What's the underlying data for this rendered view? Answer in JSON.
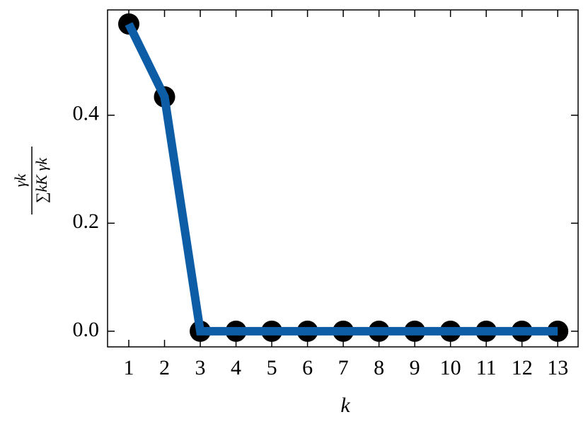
{
  "chart_data": {
    "type": "line",
    "xlabel": "k",
    "ylabel": {
      "numerator": "γk",
      "denominator": "∑kK γk"
    },
    "x": [
      1,
      2,
      3,
      4,
      5,
      6,
      7,
      8,
      9,
      10,
      11,
      12,
      13
    ],
    "values": [
      0.569,
      0.434,
      0,
      0,
      0,
      0,
      0,
      0,
      0,
      0,
      0,
      0,
      0
    ],
    "color": "#0c5da5",
    "marker_color": "#000000",
    "xlim": [
      0.406,
      13.57
    ],
    "xticks": [
      1,
      2,
      3,
      4,
      5,
      6,
      7,
      8,
      9,
      10,
      11,
      12,
      13
    ],
    "ylim": [
      -0.029,
      0.595
    ],
    "yticks": [
      {
        "value": 0,
        "label": "0.0"
      },
      {
        "value": 0.2,
        "label": "0.2"
      },
      {
        "value": 0.4,
        "label": "0.4"
      }
    ]
  }
}
